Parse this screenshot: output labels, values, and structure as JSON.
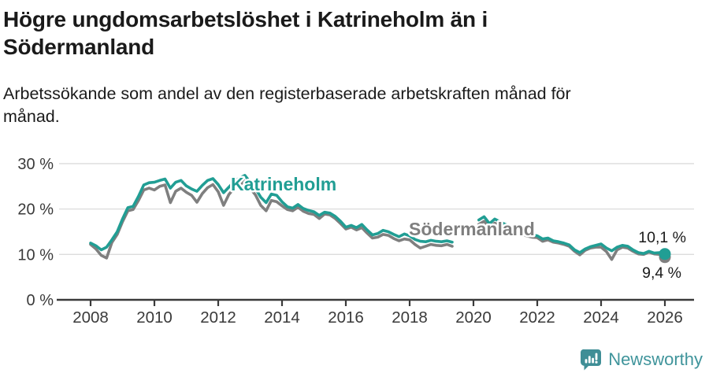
{
  "header": {
    "title_line1": "Högre ungdomsarbetslöshet i Katrineholm än i",
    "title_line2": "Södermanland",
    "subtitle_line1": "Arbetssökande som andel av den registerbaserade arbetskraften månad för",
    "subtitle_line2": "månad."
  },
  "footer": {
    "brand": "Newsworthy",
    "logo_icon": "newsworthy-speech-bubble-bar-chart-icon"
  },
  "colors": {
    "katrineholm": "#219e94",
    "sodermanland": "#7f7f7f",
    "axis": "#3a3a3a",
    "grid": "#dcdcdc",
    "annotation": "#1a1a1a",
    "brand": "#3f949b",
    "logo": "#3f8e96"
  },
  "chart_data": {
    "type": "line",
    "title": "Högre ungdomsarbetslöshet i Katrineholm än i Södermanland",
    "subtitle": "Arbetssökande som andel av den registerbaserade arbetskraften månad för månad.",
    "x_unit": "decimal year, monthly statistics sampled every 2 months",
    "x_start": 2008.0,
    "x_step_years": 0.166667,
    "gap_note": "no data plotted between mid-2019 and early 2020 (break in the lines)",
    "x_axis": {
      "ticks": [
        2008,
        2010,
        2012,
        2014,
        2016,
        2018,
        2020,
        2022,
        2024,
        2026
      ],
      "tick_labels": [
        "2008",
        "2010",
        "2012",
        "2014",
        "2016",
        "2018",
        "2020",
        "2022",
        "2024",
        "2026"
      ],
      "range": [
        2007.0,
        2026.9
      ]
    },
    "y_axis": {
      "ticks": [
        30,
        20,
        10,
        0
      ],
      "tick_labels": [
        "30 %",
        "20 %",
        "10 %",
        "0 %"
      ],
      "range": [
        0,
        32
      ],
      "gridlines": true
    },
    "legend_position": "inline labels on lines",
    "series": [
      {
        "name": "Katrineholm",
        "color": "#219e94",
        "end_value": 10.1,
        "end_label": "10,1 %",
        "values": [
          12.5,
          11.9,
          11.0,
          11.6,
          13.2,
          15.0,
          17.8,
          20.3,
          20.6,
          22.8,
          25.3,
          25.8,
          25.9,
          26.3,
          26.6,
          24.6,
          25.9,
          26.3,
          25.1,
          24.4,
          23.9,
          25.2,
          26.3,
          26.7,
          25.4,
          23.6,
          24.8,
          26.1,
          26.8,
          27.4,
          25.9,
          24.5,
          22.6,
          21.4,
          23.3,
          23.0,
          21.6,
          20.5,
          20.2,
          21.0,
          20.1,
          19.7,
          19.4,
          18.6,
          19.3,
          19.1,
          18.4,
          17.3,
          16.0,
          16.4,
          15.9,
          16.6,
          15.4,
          14.3,
          14.6,
          15.3,
          15.0,
          14.4,
          13.9,
          14.5,
          14.1,
          13.3,
          12.9,
          12.8,
          13.1,
          12.9,
          12.8,
          13.0,
          12.7,
          null,
          null,
          null,
          null,
          17.6,
          18.3,
          16.8,
          17.8,
          17.2,
          16.6,
          16.1,
          15.6,
          15.1,
          14.6,
          14.3,
          14.1,
          13.4,
          13.6,
          13.0,
          12.8,
          12.5,
          12.1,
          11.0,
          10.4,
          11.2,
          11.7,
          12.0,
          12.3,
          11.4,
          10.8,
          11.6,
          12.0,
          11.8,
          11.0,
          10.4,
          10.2,
          10.7,
          10.3,
          10.4,
          10.1
        ]
      },
      {
        "name": "Södermanland",
        "color": "#7f7f7f",
        "end_value": 9.4,
        "end_label": "9,4 %",
        "values": [
          12.2,
          11.2,
          9.8,
          9.2,
          12.6,
          14.4,
          17.2,
          19.6,
          19.9,
          21.9,
          24.2,
          24.6,
          24.2,
          25.0,
          25.3,
          21.4,
          23.9,
          24.6,
          23.7,
          23.0,
          21.5,
          23.4,
          24.7,
          25.4,
          23.8,
          20.8,
          23.2,
          24.6,
          25.3,
          26.2,
          24.6,
          23.1,
          20.8,
          19.6,
          21.9,
          21.6,
          20.7,
          19.9,
          19.6,
          20.4,
          19.5,
          19.0,
          18.8,
          17.9,
          18.9,
          18.7,
          17.9,
          16.8,
          15.6,
          16.0,
          15.4,
          15.9,
          14.7,
          13.6,
          13.8,
          14.4,
          14.2,
          13.5,
          13.0,
          13.4,
          13.2,
          12.2,
          11.4,
          11.8,
          12.2,
          12.0,
          11.9,
          12.2,
          11.8,
          null,
          null,
          null,
          null,
          16.6,
          17.3,
          16.0,
          16.9,
          16.4,
          15.9,
          15.4,
          15.0,
          14.6,
          14.1,
          13.8,
          13.7,
          12.9,
          13.2,
          12.7,
          12.5,
          12.2,
          11.8,
          10.7,
          9.9,
          10.9,
          11.4,
          11.6,
          11.6,
          10.6,
          8.9,
          11.0,
          11.6,
          11.4,
          10.7,
          10.1,
          10.0,
          10.5,
          10.1,
          10.0,
          9.4
        ]
      }
    ]
  }
}
